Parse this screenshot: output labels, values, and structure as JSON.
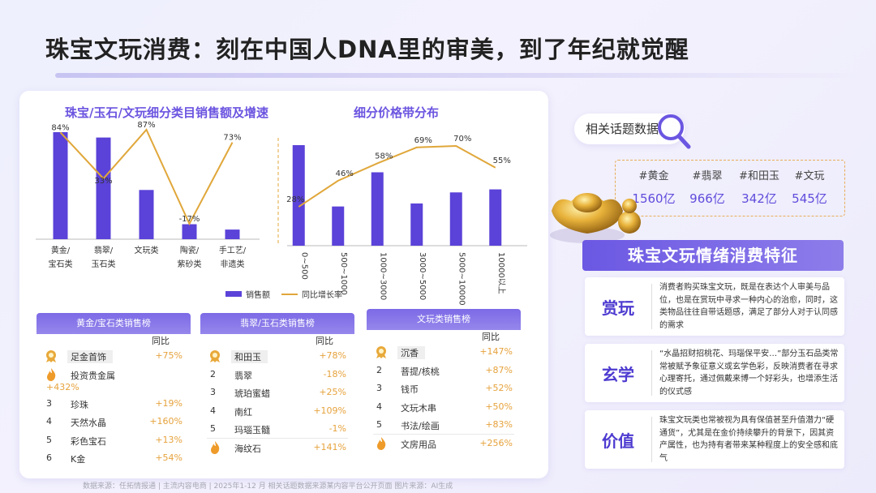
{
  "title": "珠宝文玩消费：刻在中国人DNA里的审美，到了年纪就觉醒",
  "colors": {
    "accent": "#5b42d8",
    "line": "#e0a73a",
    "header": "#7b6ae6",
    "pct": "#e6a23c"
  },
  "chart_data": [
    {
      "type": "bar",
      "title": "珠宝/玉石/文玩细分类目销售额及增速",
      "categories": [
        [
          "黄金/",
          "宝石类"
        ],
        [
          "翡翠/",
          "玉石类"
        ],
        [
          "文玩类"
        ],
        [
          "陶瓷/",
          "紫砂类"
        ],
        [
          "手工艺/",
          "非遗类"
        ]
      ],
      "series": [
        {
          "name": "销售额",
          "kind": "bar",
          "values": [
            100,
            95,
            46,
            14,
            9
          ]
        },
        {
          "name": "同比增长率",
          "kind": "line",
          "values": [
            84,
            33,
            87,
            -17,
            73
          ],
          "labels": [
            "84%",
            "33%",
            "87%",
            "-17%",
            "73%"
          ]
        }
      ]
    },
    {
      "type": "bar",
      "title": "细分价格带分布",
      "categories": [
        "0~500",
        "500~1000",
        "1000~3000",
        "3000~5000",
        "5000~10000",
        "10000以上"
      ],
      "series": [
        {
          "name": "销售额",
          "kind": "bar",
          "values": [
            100,
            39,
            73,
            42,
            53,
            56
          ]
        },
        {
          "name": "同比增长率",
          "kind": "line",
          "values": [
            28,
            46,
            58,
            69,
            70,
            55
          ],
          "labels": [
            "28%",
            "46%",
            "58%",
            "69%",
            "70%",
            "55%"
          ]
        }
      ]
    }
  ],
  "legend": {
    "bar": "销售额",
    "line": "同比增长率"
  },
  "rankings": [
    {
      "title": "黄金/宝石类销售榜",
      "sub": "同比",
      "rows": [
        {
          "rank": "",
          "name": "足金首饰",
          "pct": "+75%",
          "icon": "medal"
        },
        {
          "rank": "",
          "name": "投资贵金属",
          "pct": "+432%",
          "icon": "flame",
          "wrap": true
        },
        {
          "rank": "3",
          "name": "珍珠",
          "pct": "+19%"
        },
        {
          "rank": "4",
          "name": "天然水晶",
          "pct": "+160%"
        },
        {
          "rank": "5",
          "name": "彩色宝石",
          "pct": "+13%"
        },
        {
          "rank": "6",
          "name": "K金",
          "pct": "+54%"
        }
      ]
    },
    {
      "title": "翡翠/玉石类销售榜",
      "sub": "同比",
      "rows": [
        {
          "rank": "",
          "name": "和田玉",
          "pct": "+78%",
          "icon": "medal"
        },
        {
          "rank": "2",
          "name": "翡翠",
          "pct": "-18%"
        },
        {
          "rank": "3",
          "name": "琥珀蜜蜡",
          "pct": "+25%"
        },
        {
          "rank": "4",
          "name": "南红",
          "pct": "+109%"
        },
        {
          "rank": "5",
          "name": "玛瑙玉髓",
          "pct": "-1%"
        },
        {
          "rank": "",
          "name": "海纹石",
          "pct": "+141%",
          "icon": "flame"
        }
      ]
    },
    {
      "title": "文玩类销售榜",
      "sub": "同比",
      "rows": [
        {
          "rank": "",
          "name": "沉香",
          "pct": "+147%",
          "icon": "medal"
        },
        {
          "rank": "2",
          "name": "菩提/核桃",
          "pct": "+87%"
        },
        {
          "rank": "3",
          "name": "钱币",
          "pct": "+52%"
        },
        {
          "rank": "4",
          "name": "文玩木串",
          "pct": "+50%"
        },
        {
          "rank": "5",
          "name": "书法/绘画",
          "pct": "+83%"
        },
        {
          "rank": "",
          "name": "文房用品",
          "pct": "+256%",
          "icon": "flame"
        }
      ]
    }
  ],
  "footer": "数据来源：任拓情报通 | 主流内容电商 | 2025年1-12 月    相关话题数据来源某内容平台公开页面    图片来源：AI生成",
  "topics": {
    "label": "相关话题数据",
    "items": [
      {
        "tag": "#黄金",
        "value": "1560亿"
      },
      {
        "tag": "#翡翠",
        "value": "966亿"
      },
      {
        "tag": "#和田玉",
        "value": "342亿"
      },
      {
        "tag": "#文玩",
        "value": "545亿"
      }
    ]
  },
  "features": {
    "title": "珠宝文玩情绪消费特征",
    "items": [
      {
        "label": "赏玩",
        "desc": "消费者购买珠宝文玩，既是在表达个人审美与品位，也是在赏玩中寻求一种内心的治愈，同时，这类物品往往自带话题感，满足了部分人对于认同感的需求"
      },
      {
        "label": "玄学",
        "desc": "“水晶招财招桃花、玛瑙保平安…”部分玉石品类常常被赋予象征意义或玄学色彩，反映消费者在寻求心理寄托，通过佩戴来博一个好彩头，也增添生活的仪式感"
      },
      {
        "label": "价值",
        "desc": "珠宝文玩类也常被视为具有保值甚至升值潜力“硬通货”，尤其是在金价持续攀升的背景下，因其资产属性，也为持有者带来某种程度上的安全感和底气"
      }
    ]
  }
}
